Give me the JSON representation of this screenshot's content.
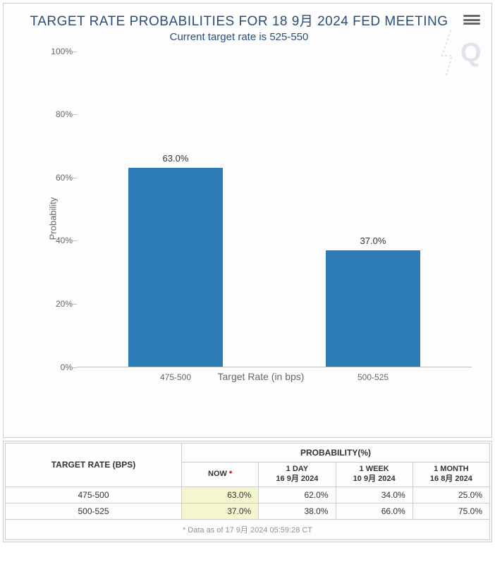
{
  "header": {
    "title": "TARGET RATE PROBABILITIES FOR 18 9月 2024 FED MEETING",
    "subtitle": "Current target rate is 525-550"
  },
  "chart": {
    "type": "bar",
    "ylabel": "Probability",
    "xlabel": "Target Rate (in bps)",
    "ylim": [
      0,
      100
    ],
    "ytick_step": 20,
    "ytick_suffix": "%",
    "bar_color": "#2e7cb5",
    "bar_fraction_of_slot": 0.48,
    "background_color": "#fdfdfd",
    "axis_color": "#bfbfbf",
    "text_color": "#666666",
    "categories": [
      "475-500",
      "500-525"
    ],
    "values": [
      63.0,
      37.0
    ],
    "value_labels": [
      "63.0%",
      "37.0%"
    ]
  },
  "table": {
    "target_header": "TARGET RATE (BPS)",
    "prob_header": "PROBABILITY(%)",
    "columns": [
      {
        "top": "NOW",
        "bottom": "",
        "now": true
      },
      {
        "top": "1 DAY",
        "bottom": "16 9月 2024",
        "now": false
      },
      {
        "top": "1 WEEK",
        "bottom": "10 9月 2024",
        "now": false
      },
      {
        "top": "1 MONTH",
        "bottom": "16 8月 2024",
        "now": false
      }
    ],
    "highlight_color": "#f4f6cf",
    "rows": [
      {
        "rate": "475-500",
        "vals": [
          "63.0%",
          "62.0%",
          "34.0%",
          "25.0%"
        ]
      },
      {
        "rate": "500-525",
        "vals": [
          "37.0%",
          "38.0%",
          "66.0%",
          "75.0%"
        ]
      }
    ],
    "footnote": "* Data as of 17 9月 2024 05:59:28 CT"
  }
}
